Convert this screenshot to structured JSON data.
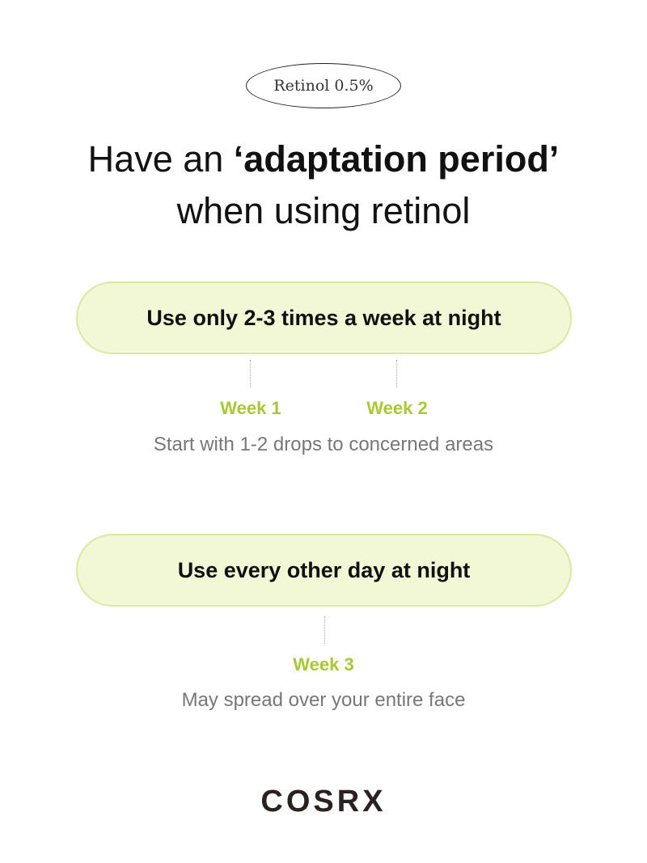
{
  "badge": "Retinol 0.5%",
  "title": {
    "line1_pre": "Have an ",
    "line1_bold": "‘adaptation period’",
    "line2": "when using retinol"
  },
  "steps": [
    {
      "pill": "Use only 2-3 times a week at night",
      "weeks": [
        "Week 1",
        "Week 2"
      ],
      "description": "Start with 1-2 drops to concerned areas"
    },
    {
      "pill": "Use every other day at night",
      "weeks": [
        "Week 3"
      ],
      "description": "May spread over your entire face"
    }
  ],
  "logo": "COSRX",
  "colors": {
    "accent": "#a9c932",
    "pill_fill": "#f2f7d6",
    "pill_border": "#d9eaa0"
  }
}
